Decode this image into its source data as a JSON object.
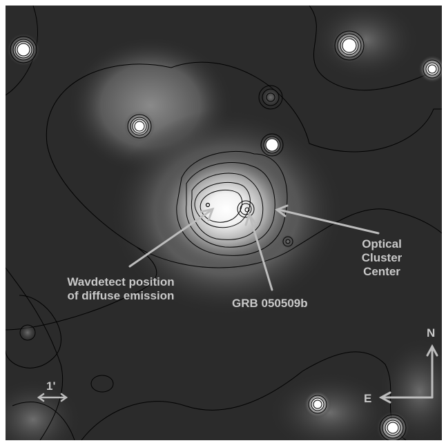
{
  "annotations": {
    "wavdetect_line1": "Wavdetect position",
    "wavdetect_line2": "of diffuse emission",
    "grb": "GRB 050509b",
    "optical_line1": "Optical",
    "optical_line2": "Cluster",
    "optical_line3": "Center",
    "north": "N",
    "east": "E",
    "scale": "1'"
  },
  "colors": {
    "background": "#2b2b2b",
    "emission": "#ffffff",
    "contour": "#000000",
    "annotation": "#bdbdbd"
  }
}
